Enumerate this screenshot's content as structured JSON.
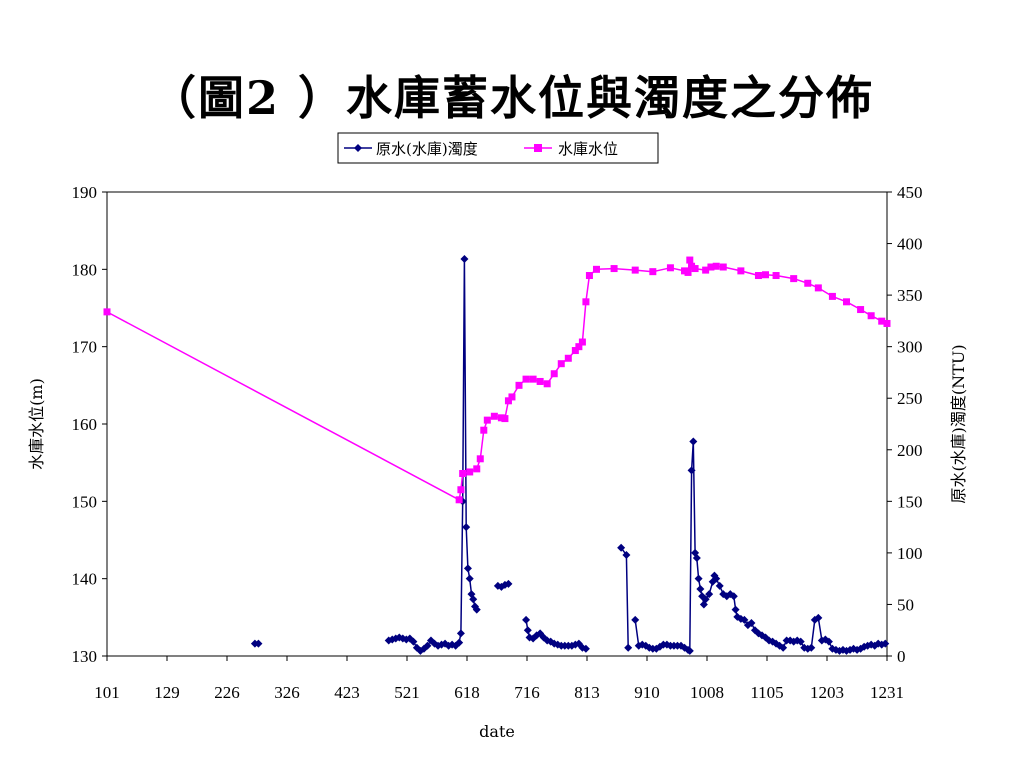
{
  "slide": {
    "title": "（圖2 ）水庫蓄水位與濁度之分佈"
  },
  "chart_data": {
    "type": "line",
    "xlabel": "date",
    "x_tick_labels": [
      "101",
      "129",
      "226",
      "326",
      "423",
      "521",
      "618",
      "716",
      "813",
      "910",
      "1008",
      "1105",
      "1203",
      "1231"
    ],
    "left_axis": {
      "label": "水庫水位(m)",
      "ylim": [
        130,
        190
      ],
      "ticks": [
        130,
        140,
        150,
        160,
        170,
        180,
        190
      ]
    },
    "right_axis": {
      "label": "原水(水庫)濁度(NTU)",
      "ylim": [
        0,
        450
      ],
      "ticks": [
        0,
        50,
        100,
        150,
        200,
        250,
        300,
        350,
        400,
        450
      ]
    },
    "legend": {
      "placement": "top-center"
    },
    "series": [
      {
        "name": "原水(水庫)濁度",
        "axis": "right",
        "color": "#000080",
        "marker": "diamond",
        "segments": [
          [
            [
              84,
              12
            ],
            [
              86,
              12
            ]
          ],
          [
            [
              160,
              15
            ],
            [
              162,
              16
            ],
            [
              164,
              17
            ],
            [
              166,
              18
            ],
            [
              168,
              17
            ],
            [
              170,
              16
            ],
            [
              172,
              17
            ],
            [
              174,
              14
            ],
            [
              176,
              8
            ],
            [
              178,
              5
            ],
            [
              180,
              7
            ],
            [
              182,
              10
            ],
            [
              184,
              15
            ],
            [
              186,
              12
            ],
            [
              188,
              10
            ],
            [
              190,
              11
            ],
            [
              192,
              12
            ],
            [
              194,
              10
            ],
            [
              196,
              11
            ],
            [
              198,
              10
            ],
            [
              200,
              13
            ],
            [
              201,
              22
            ],
            [
              202,
              150
            ],
            [
              203,
              385
            ],
            [
              204,
              125
            ],
            [
              205,
              85
            ],
            [
              206,
              75
            ],
            [
              207,
              60
            ],
            [
              208,
              55
            ],
            [
              209,
              48
            ],
            [
              210,
              45
            ]
          ],
          [
            [
              222,
              68
            ],
            [
              224,
              67
            ],
            [
              226,
              69
            ],
            [
              228,
              70
            ]
          ],
          [
            [
              238,
              35
            ],
            [
              239,
              25
            ],
            [
              240,
              18
            ],
            [
              242,
              17
            ],
            [
              244,
              20
            ],
            [
              246,
              22
            ],
            [
              248,
              18
            ],
            [
              250,
              15
            ],
            [
              252,
              14
            ],
            [
              254,
              12
            ],
            [
              256,
              11
            ],
            [
              258,
              10
            ],
            [
              260,
              10
            ],
            [
              262,
              10
            ],
            [
              264,
              10
            ],
            [
              266,
              11
            ],
            [
              268,
              12
            ],
            [
              270,
              8
            ],
            [
              272,
              7
            ]
          ],
          [
            [
              292,
              105
            ],
            [
              295,
              98
            ],
            [
              296,
              8
            ]
          ],
          [
            [
              300,
              35
            ],
            [
              302,
              10
            ],
            [
              304,
              11
            ],
            [
              306,
              10
            ],
            [
              308,
              8
            ],
            [
              310,
              7
            ],
            [
              312,
              7
            ],
            [
              314,
              9
            ],
            [
              316,
              11
            ],
            [
              318,
              11
            ],
            [
              320,
              10
            ],
            [
              322,
              10
            ],
            [
              324,
              10
            ],
            [
              326,
              10
            ],
            [
              328,
              8
            ],
            [
              330,
              6
            ],
            [
              331,
              5
            ],
            [
              332,
              180
            ],
            [
              333,
              208
            ],
            [
              334,
              100
            ],
            [
              335,
              95
            ],
            [
              336,
              75
            ],
            [
              337,
              65
            ],
            [
              338,
              58
            ],
            [
              339,
              50
            ],
            [
              340,
              55
            ],
            [
              342,
              60
            ],
            [
              344,
              72
            ],
            [
              345,
              78
            ],
            [
              346,
              75
            ],
            [
              348,
              68
            ],
            [
              350,
              60
            ],
            [
              352,
              58
            ],
            [
              354,
              60
            ],
            [
              356,
              58
            ],
            [
              357,
              45
            ],
            [
              358,
              38
            ],
            [
              360,
              36
            ],
            [
              362,
              35
            ],
            [
              364,
              30
            ],
            [
              366,
              32
            ],
            [
              368,
              25
            ],
            [
              370,
              22
            ],
            [
              372,
              20
            ],
            [
              374,
              18
            ],
            [
              376,
              15
            ],
            [
              378,
              14
            ],
            [
              380,
              12
            ],
            [
              382,
              10
            ],
            [
              384,
              8
            ],
            [
              386,
              15
            ],
            [
              388,
              15
            ],
            [
              390,
              14
            ],
            [
              392,
              15
            ],
            [
              394,
              14
            ],
            [
              396,
              8
            ],
            [
              398,
              7
            ],
            [
              400,
              8
            ],
            [
              402,
              35
            ],
            [
              404,
              37
            ],
            [
              406,
              15
            ],
            [
              408,
              16
            ],
            [
              410,
              14
            ],
            [
              412,
              7
            ],
            [
              414,
              6
            ],
            [
              416,
              5
            ],
            [
              418,
              6
            ],
            [
              420,
              5
            ],
            [
              422,
              6
            ],
            [
              424,
              7
            ],
            [
              426,
              6
            ],
            [
              428,
              7
            ],
            [
              430,
              9
            ],
            [
              432,
              10
            ],
            [
              434,
              11
            ],
            [
              436,
              10
            ],
            [
              438,
              12
            ],
            [
              440,
              11
            ],
            [
              442,
              12
            ]
          ]
        ]
      },
      {
        "name": "水庫水位",
        "axis": "left",
        "color": "#ff00ff",
        "marker": "square",
        "segments": [
          [
            [
              0,
              174.5
            ],
            [
              200,
              150.2
            ],
            [
              201,
              151.5
            ],
            [
              202,
              153.6
            ],
            [
              206,
              153.8
            ],
            [
              210,
              154.2
            ],
            [
              212,
              155.5
            ],
            [
              214,
              159.2
            ],
            [
              216,
              160.5
            ],
            [
              220,
              161
            ],
            [
              224,
              160.8
            ],
            [
              226,
              160.7
            ],
            [
              228,
              163
            ],
            [
              230,
              163.5
            ],
            [
              234,
              165
            ],
            [
              238,
              165.8
            ],
            [
              242,
              165.8
            ],
            [
              246,
              165.5
            ],
            [
              250,
              165.2
            ],
            [
              254,
              166.5
            ],
            [
              258,
              167.8
            ],
            [
              262,
              168.5
            ],
            [
              266,
              169.5
            ],
            [
              268,
              170
            ],
            [
              270,
              170.6
            ],
            [
              272,
              175.8
            ],
            [
              274,
              179.2
            ],
            [
              278,
              180
            ],
            [
              288,
              180.1
            ],
            [
              300,
              179.9
            ],
            [
              310,
              179.7
            ],
            [
              320,
              180.2
            ],
            [
              328,
              179.8
            ],
            [
              330,
              179.6
            ],
            [
              331,
              181.2
            ],
            [
              332,
              180.4
            ],
            [
              334,
              180.1
            ],
            [
              340,
              179.9
            ],
            [
              343,
              180.3
            ],
            [
              346,
              180.4
            ],
            [
              350,
              180.3
            ],
            [
              360,
              179.8
            ],
            [
              370,
              179.2
            ],
            [
              374,
              179.3
            ],
            [
              380,
              179.2
            ],
            [
              390,
              178.8
            ],
            [
              398,
              178.2
            ],
            [
              404,
              177.6
            ],
            [
              412,
              176.5
            ],
            [
              420,
              175.8
            ],
            [
              428,
              174.8
            ],
            [
              434,
              174
            ],
            [
              440,
              173.3
            ],
            [
              443,
              173
            ]
          ]
        ]
      }
    ]
  }
}
